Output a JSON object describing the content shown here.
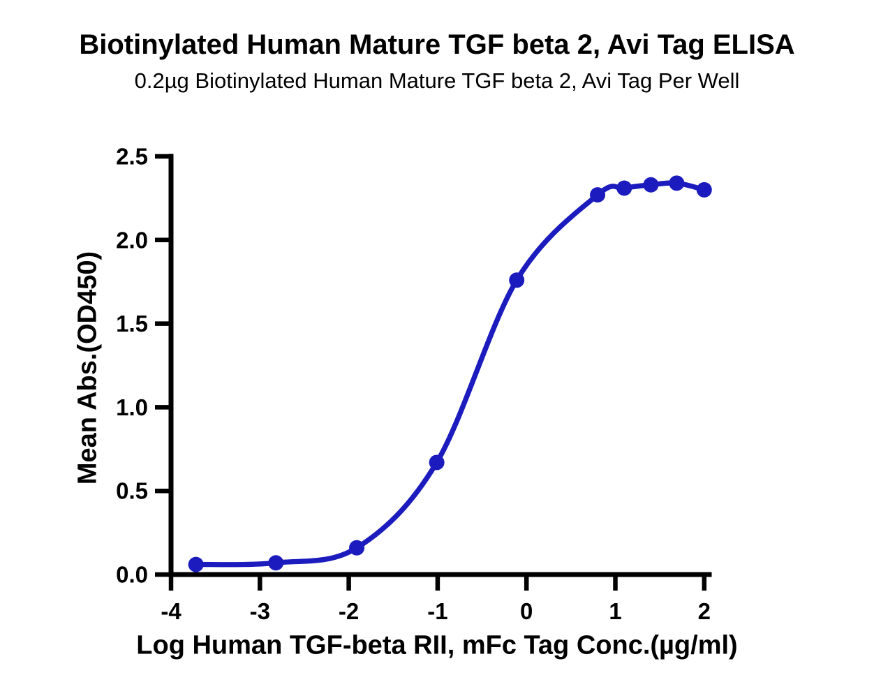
{
  "header": {
    "title": "Biotinylated Human Mature TGF beta 2, Avi Tag ELISA",
    "subtitle": "0.2µg Biotinylated Human Mature TGF beta 2, Avi Tag Per Well"
  },
  "chart_data": {
    "type": "scatter",
    "subtype": "sigmoidal-dose-response-curve",
    "title": "Biotinylated Human Mature TGF beta 2, Avi Tag ELISA",
    "subtitle": "0.2µg Biotinylated Human Mature TGF beta 2, Avi Tag Per Well",
    "xlabel": "Log Human TGF-beta RII, mFc Tag Conc.(µg/ml)",
    "ylabel": "Mean Abs.(OD450)",
    "xlim": [
      -4,
      2.06
    ],
    "ylim": [
      0,
      2.5
    ],
    "x_ticks": [
      -4,
      -3,
      -2,
      -1,
      0,
      1,
      2
    ],
    "x_tick_labels": [
      "-4",
      "-3",
      "-2",
      "-1",
      "0",
      "1",
      "2"
    ],
    "y_ticks": [
      0,
      0.5,
      1,
      1.5,
      2,
      2.5
    ],
    "y_tick_labels": [
      "0.0",
      "0.5",
      "1.0",
      "1.5",
      "2.0",
      "2.5"
    ],
    "grid": false,
    "legend_position": "none",
    "colors": {
      "series": "#1B1BBE",
      "axis": "#000000",
      "background": "#FFFFFF"
    },
    "series": [
      {
        "marker": "circle",
        "line": "smooth",
        "points": [
          {
            "x": -3.72,
            "y": 0.06
          },
          {
            "x": -2.82,
            "y": 0.07
          },
          {
            "x": -1.91,
            "y": 0.16
          },
          {
            "x": -1.01,
            "y": 0.67
          },
          {
            "x": -0.11,
            "y": 1.76
          },
          {
            "x": 0.8,
            "y": 2.27
          },
          {
            "x": 1.1,
            "y": 2.31
          },
          {
            "x": 1.4,
            "y": 2.33
          },
          {
            "x": 1.69,
            "y": 2.34
          },
          {
            "x": 2.0,
            "y": 2.3
          }
        ]
      }
    ]
  }
}
